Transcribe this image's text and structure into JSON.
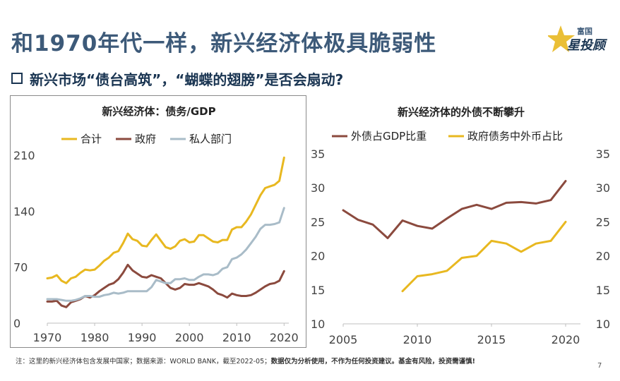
{
  "page": {
    "title": "和1970年代一样，新兴经济体极具脆弱性",
    "subtitle": "新兴市场“债台高筑”，“蝴蝶的翅膀”是否会扇动?",
    "logo_top": "富国",
    "logo_main": "星投顾",
    "footnote_plain": "注：这里的新兴经济体包含发展中国家；数据来源：WORLD BANK，截至2022-05；",
    "footnote_bold": "数据仅为分析使用，不作为任何投资建议。基金有风险，投资需谨慎!",
    "page_number": "7"
  },
  "colors": {
    "title": "#3d5a79",
    "gold": "#e8b820",
    "brown": "#8b4a3e",
    "gray": "#a9bcc8"
  },
  "chart_data": [
    {
      "type": "line",
      "title": "新兴经济体：债务/GDP",
      "xlabel": "",
      "ylabel": "",
      "xlim": [
        1970,
        2021
      ],
      "ylim": [
        0,
        210
      ],
      "xticks": [
        1970,
        1980,
        1990,
        2000,
        2010,
        2020
      ],
      "yticks": [
        0,
        70,
        140,
        210
      ],
      "legend_position": "top",
      "series": [
        {
          "name": "合计",
          "color": "#e8b820",
          "x": [
            1970,
            1971,
            1972,
            1973,
            1974,
            1975,
            1976,
            1977,
            1978,
            1979,
            1980,
            1981,
            1982,
            1983,
            1984,
            1985,
            1986,
            1987,
            1988,
            1989,
            1990,
            1991,
            1992,
            1993,
            1994,
            1995,
            1996,
            1997,
            1998,
            1999,
            2000,
            2001,
            2002,
            2003,
            2004,
            2005,
            2006,
            2007,
            2008,
            2009,
            2010,
            2011,
            2012,
            2013,
            2014,
            2015,
            2016,
            2017,
            2018,
            2019,
            2020
          ],
          "values": [
            56,
            57,
            60,
            53,
            50,
            56,
            58,
            63,
            67,
            66,
            67,
            72,
            78,
            82,
            88,
            90,
            100,
            112,
            105,
            103,
            97,
            96,
            104,
            111,
            103,
            95,
            93,
            96,
            103,
            105,
            101,
            102,
            110,
            110,
            106,
            102,
            101,
            104,
            104,
            117,
            120,
            120,
            127,
            136,
            148,
            160,
            169,
            171,
            173,
            178,
            207
          ]
        },
        {
          "name": "政府",
          "color": "#8b4a3e",
          "x": [
            1970,
            1971,
            1972,
            1973,
            1974,
            1975,
            1976,
            1977,
            1978,
            1979,
            1980,
            1981,
            1982,
            1983,
            1984,
            1985,
            1986,
            1987,
            1988,
            1989,
            1990,
            1991,
            1992,
            1993,
            1994,
            1995,
            1996,
            1997,
            1998,
            1999,
            2000,
            2001,
            2002,
            2003,
            2004,
            2005,
            2006,
            2007,
            2008,
            2009,
            2010,
            2011,
            2012,
            2013,
            2014,
            2015,
            2016,
            2017,
            2018,
            2019,
            2020
          ],
          "values": [
            27,
            27,
            28,
            22,
            20,
            26,
            28,
            30,
            34,
            32,
            35,
            40,
            44,
            48,
            50,
            55,
            63,
            73,
            66,
            62,
            58,
            57,
            60,
            58,
            56,
            50,
            44,
            42,
            44,
            49,
            48,
            48,
            50,
            48,
            46,
            42,
            37,
            35,
            32,
            37,
            35,
            34,
            34,
            35,
            38,
            42,
            46,
            49,
            50,
            53,
            65
          ]
        },
        {
          "name": "私人部门",
          "color": "#a9bcc8",
          "x": [
            1970,
            1971,
            1972,
            1973,
            1974,
            1975,
            1976,
            1977,
            1978,
            1979,
            1980,
            1981,
            1982,
            1983,
            1984,
            1985,
            1986,
            1987,
            1988,
            1989,
            1990,
            1991,
            1992,
            1993,
            1994,
            1995,
            1996,
            1997,
            1998,
            1999,
            2000,
            2001,
            2002,
            2003,
            2004,
            2005,
            2006,
            2007,
            2008,
            2009,
            2010,
            2011,
            2012,
            2013,
            2014,
            2015,
            2016,
            2017,
            2018,
            2019,
            2020
          ],
          "values": [
            30,
            30,
            30,
            29,
            28,
            28,
            29,
            31,
            34,
            34,
            33,
            33,
            35,
            36,
            38,
            37,
            38,
            40,
            40,
            40,
            40,
            40,
            45,
            54,
            52,
            50,
            50,
            55,
            55,
            56,
            54,
            54,
            58,
            61,
            61,
            60,
            62,
            68,
            70,
            80,
            82,
            86,
            92,
            100,
            108,
            118,
            123,
            123,
            124,
            126,
            144
          ]
        }
      ]
    },
    {
      "type": "line",
      "title": "新兴经济体的外债不断攀升",
      "xlabel": "",
      "ylabel": "",
      "xlim": [
        2005,
        2021
      ],
      "ylim": [
        10,
        35
      ],
      "xticks": [
        2005,
        2010,
        2015,
        2020
      ],
      "yticks": [
        10,
        15,
        20,
        25,
        30,
        35
      ],
      "legend_position": "top",
      "series": [
        {
          "name": "外债占GDP比重",
          "color": "#8b4a3e",
          "x": [
            2005,
            2006,
            2007,
            2008,
            2009,
            2010,
            2011,
            2012,
            2013,
            2014,
            2015,
            2016,
            2017,
            2018,
            2019,
            2020
          ],
          "values": [
            26.7,
            25.3,
            24.6,
            22.6,
            25.2,
            24.4,
            24.0,
            25.5,
            26.9,
            27.5,
            26.9,
            27.8,
            27.9,
            27.7,
            28.2,
            31.0
          ]
        },
        {
          "name": "政府债务中外币占比",
          "color": "#e8b820",
          "x": [
            2009,
            2010,
            2011,
            2012,
            2013,
            2014,
            2015,
            2016,
            2017,
            2018,
            2019,
            2020
          ],
          "values": [
            14.8,
            17.0,
            17.3,
            17.8,
            19.7,
            20.0,
            22.2,
            21.8,
            20.6,
            21.8,
            22.2,
            25.0
          ]
        }
      ]
    }
  ]
}
